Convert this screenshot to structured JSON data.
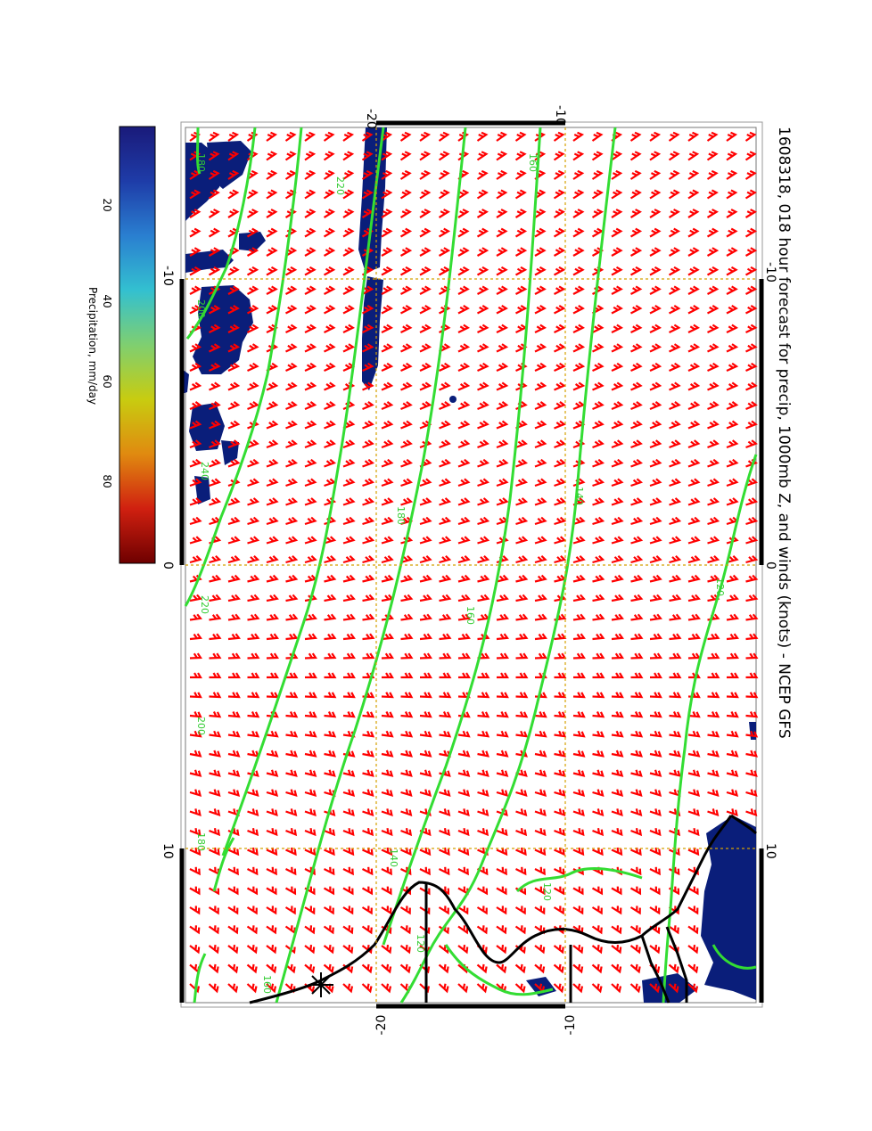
{
  "title": "1608318, 018 hour forecast for precip, 1000mb Z, and winds (knots) - NCEP GFS",
  "colorbar": {
    "label": "Precipitation, mm/day",
    "ticks": [
      "20",
      "40",
      "60",
      "80"
    ],
    "colors": [
      "#1a1a7a",
      "#1e3ca8",
      "#2a7fd0",
      "#33c0d0",
      "#7fcf70",
      "#c8cc10",
      "#e08a10",
      "#d02010",
      "#6e0000"
    ]
  },
  "axes": {
    "top_ticks": [
      "-20",
      "-10"
    ],
    "bottom_ticks": [
      "-20",
      "-10"
    ],
    "left_ticks": [
      "-10",
      "0",
      "10"
    ],
    "right_ticks": [
      "-10",
      "0",
      "10"
    ]
  },
  "contours": {
    "color": "#33dd33",
    "labels": [
      "220",
      "200",
      "180",
      "160",
      "140",
      "120",
      "200",
      "180",
      "160",
      "140",
      "120",
      "240",
      "220",
      "160",
      "180",
      "120"
    ]
  },
  "wind_barb_color": "#ff0000",
  "precip_color": "#0a1e7a",
  "coast_color": "#000000"
}
